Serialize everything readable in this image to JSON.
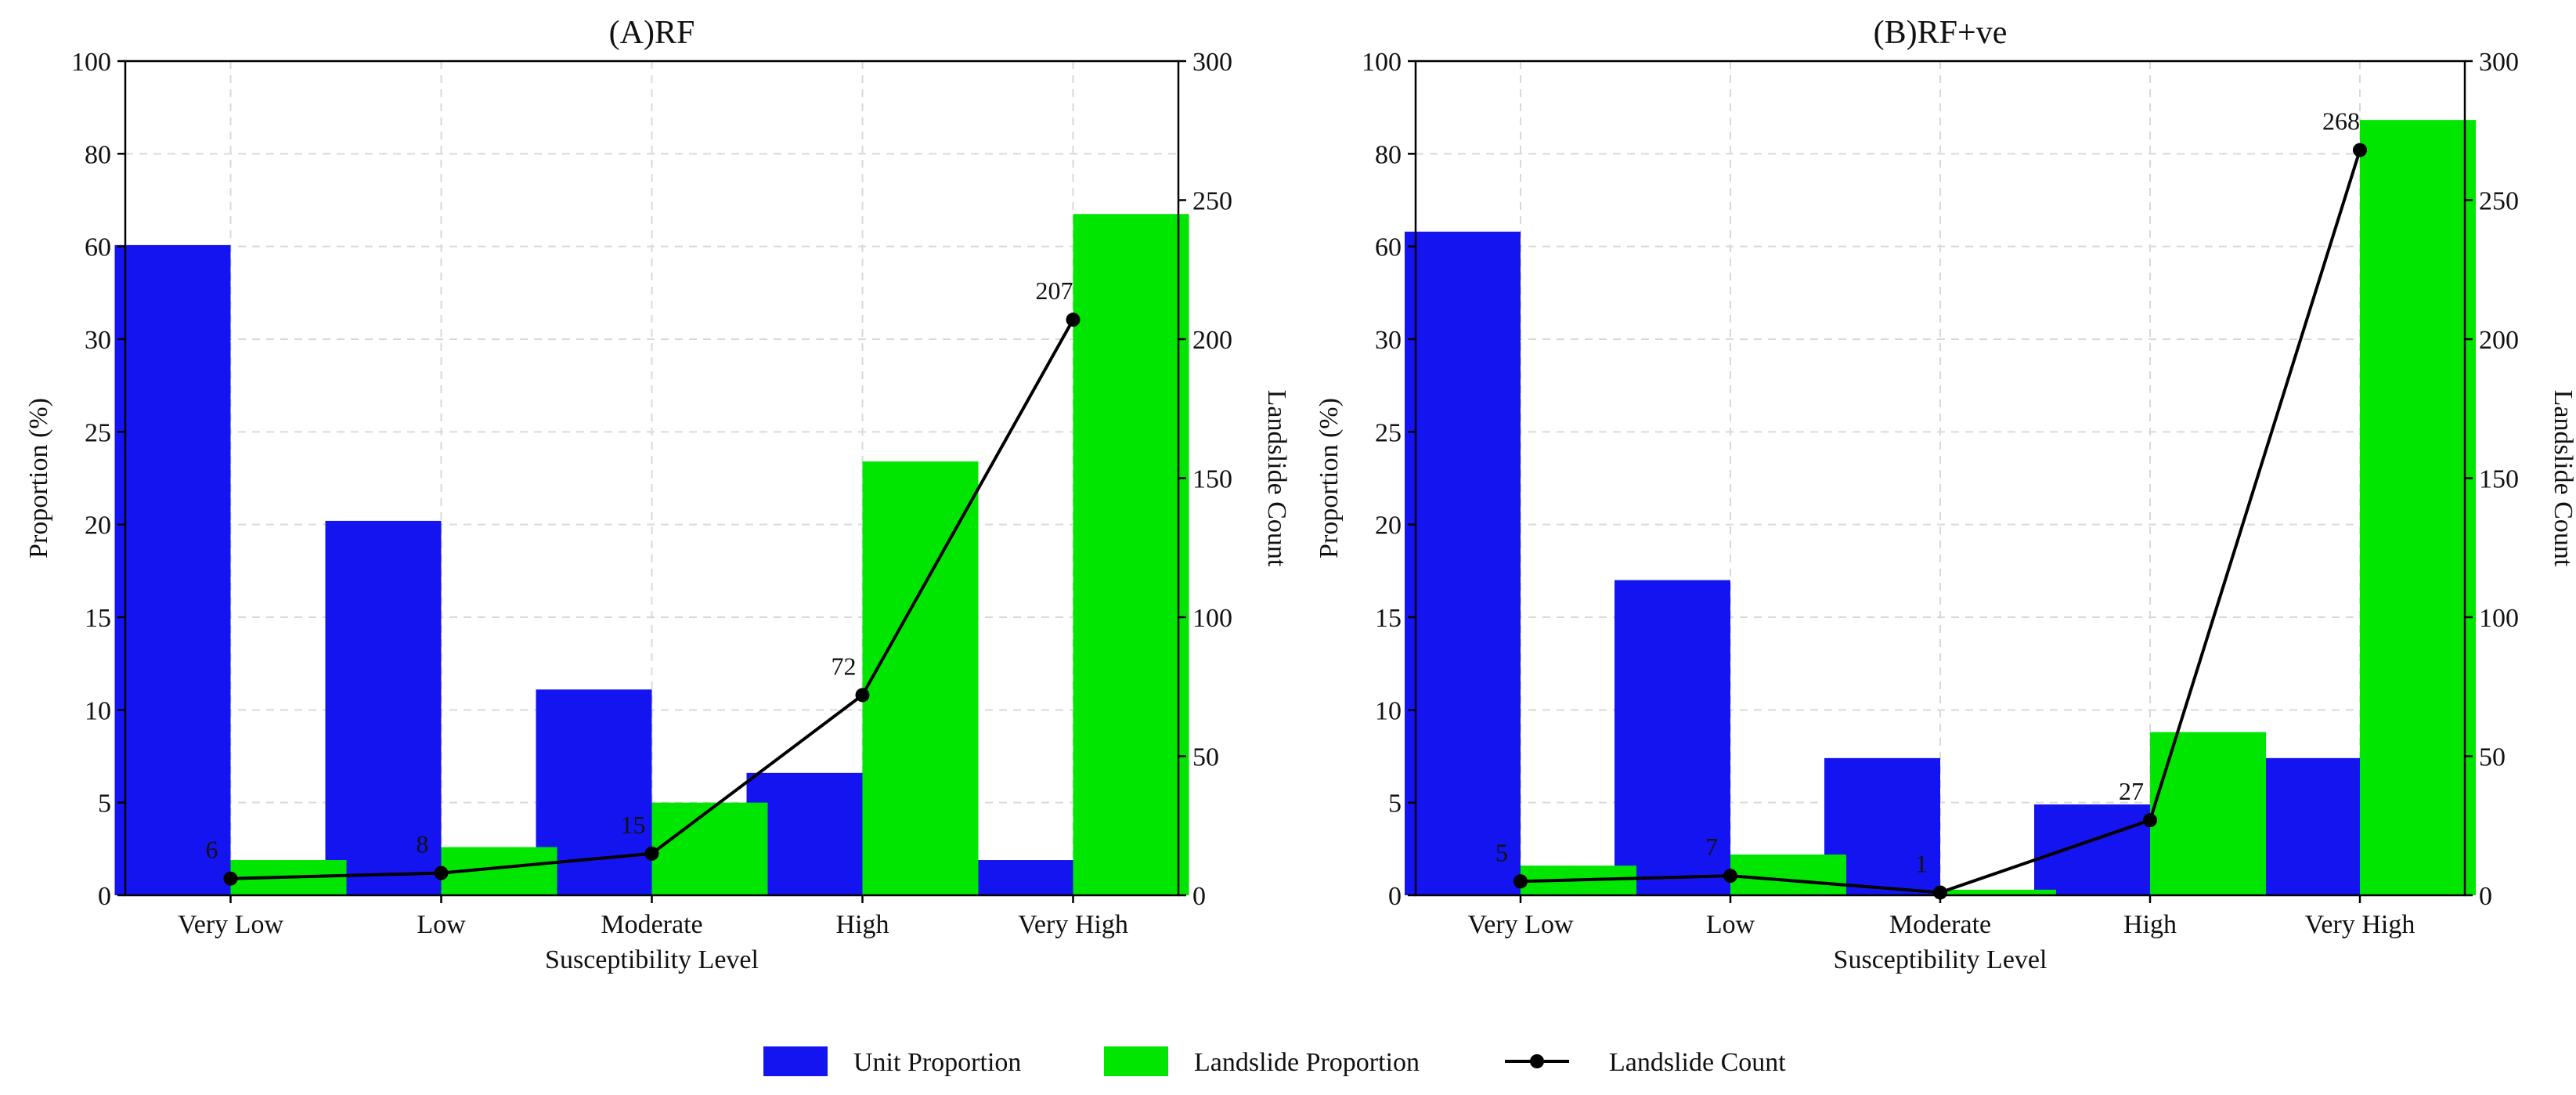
{
  "chart_data": [
    {
      "type": "bar",
      "title": "(A)RF",
      "xlabel": "Susceptibility Level",
      "ylabel": "Proportion (%)",
      "y2label": "Landslide Count",
      "categories": [
        "Very Low",
        "Low",
        "Moderate",
        "High",
        "Very High"
      ],
      "yticks": [
        "0",
        "5",
        "10",
        "15",
        "20",
        "25",
        "30",
        "60",
        "80",
        "100"
      ],
      "y2ticks": [
        "0",
        "50",
        "100",
        "150",
        "200",
        "250",
        "300"
      ],
      "y2lim": [
        0,
        300
      ],
      "series": [
        {
          "name": "Unit Proportion",
          "values": [
            60.3,
            20.2,
            11.1,
            6.6,
            1.9
          ]
        },
        {
          "name": "Landslide Proportion",
          "values": [
            1.9,
            2.6,
            5.0,
            23.4,
            67.0
          ]
        },
        {
          "name": "Landslide Count",
          "axis": "right",
          "values": [
            6,
            8,
            15,
            72,
            207
          ]
        }
      ],
      "data_labels": [
        "6",
        "8",
        "15",
        "72",
        "207"
      ]
    },
    {
      "type": "bar",
      "title": "(B)RF+ve",
      "xlabel": "Susceptibility Level",
      "ylabel": "Proportion (%)",
      "y2label": "Landslide Count",
      "categories": [
        "Very Low",
        "Low",
        "Moderate",
        "High",
        "Very High"
      ],
      "yticks": [
        "0",
        "5",
        "10",
        "15",
        "20",
        "25",
        "30",
        "60",
        "80",
        "100"
      ],
      "y2ticks": [
        "0",
        "50",
        "100",
        "150",
        "200",
        "250",
        "300"
      ],
      "y2lim": [
        0,
        300
      ],
      "series": [
        {
          "name": "Unit Proportion",
          "values": [
            63.2,
            17.0,
            7.4,
            4.9,
            7.4
          ]
        },
        {
          "name": "Landslide Proportion",
          "values": [
            1.6,
            2.2,
            0.3,
            8.8,
            87.3
          ]
        },
        {
          "name": "Landslide Count",
          "axis": "right",
          "values": [
            5,
            7,
            1,
            27,
            268
          ]
        }
      ],
      "data_labels": [
        "5",
        "7",
        "1",
        "27",
        "268"
      ]
    }
  ],
  "legend": {
    "items": [
      "Unit Proportion",
      "Landslide Proportion",
      "Landslide Count"
    ]
  },
  "colors": {
    "unit": "#1414f0",
    "landslide": "#00e600",
    "count": "#000000"
  }
}
